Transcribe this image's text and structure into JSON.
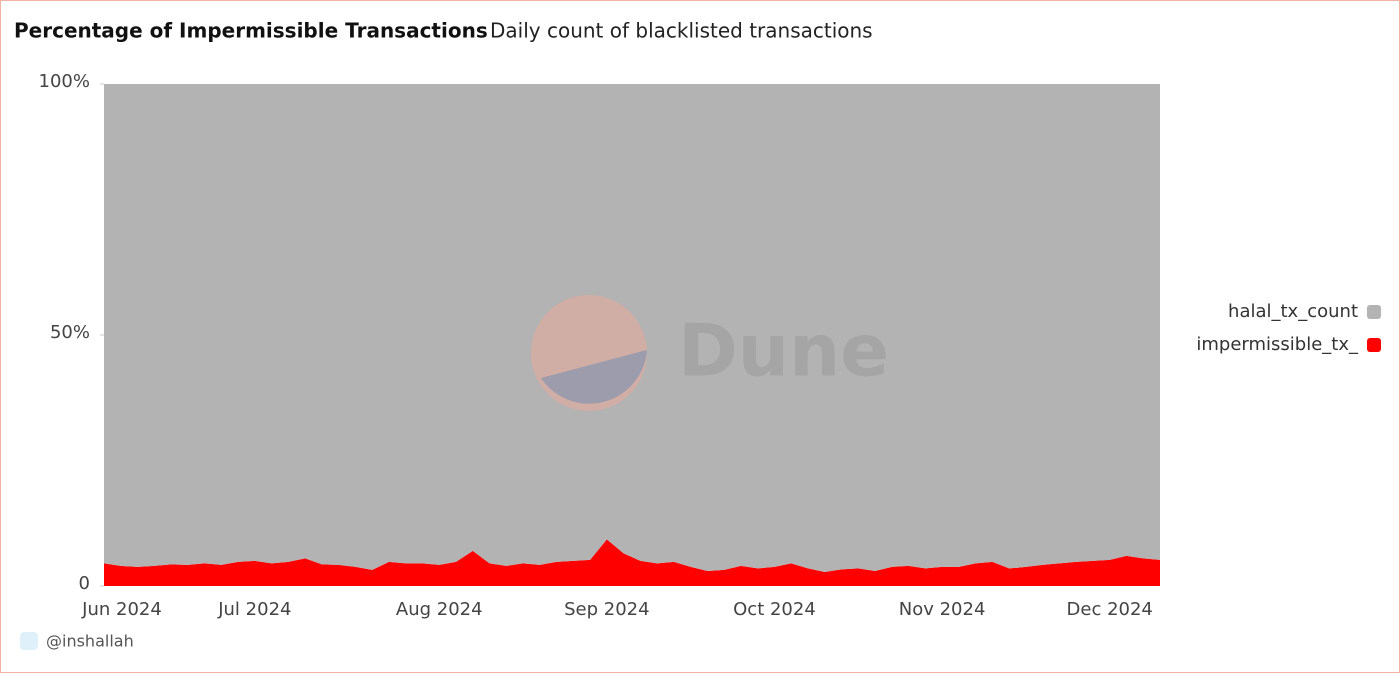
{
  "chart_data": {
    "type": "stacked-area-percent",
    "title": "Percentage of Impermissible Transactions",
    "subtitle": "Daily count of blacklisted transactions",
    "watermark": "Dune",
    "credit": "@inshallah",
    "categories": [
      "Jun 2024",
      null,
      null,
      null,
      null,
      null,
      null,
      null,
      null,
      "Jul 2024",
      null,
      null,
      null,
      null,
      null,
      null,
      null,
      null,
      null,
      null,
      "Aug 2024",
      null,
      null,
      null,
      null,
      null,
      null,
      null,
      null,
      null,
      "Sep 2024",
      null,
      null,
      null,
      null,
      null,
      null,
      null,
      null,
      null,
      "Oct 2024",
      null,
      null,
      null,
      null,
      null,
      null,
      null,
      null,
      null,
      "Nov 2024",
      null,
      null,
      null,
      null,
      null,
      null,
      null,
      null,
      null,
      "Dec 2024",
      null,
      null,
      null
    ],
    "series": [
      {
        "name": "halal_tx_count",
        "color": "#b3b3b3",
        "values": [
          95.5,
          96,
          96.2,
          96,
          95.7,
          95.8,
          95.5,
          95.8,
          95.2,
          95,
          95.5,
          95.2,
          94.5,
          95.7,
          95.8,
          96.2,
          96.8,
          95.2,
          95.5,
          95.5,
          95.8,
          95.2,
          93,
          95.5,
          96,
          95.5,
          95.8,
          95.2,
          95,
          94.8,
          90.7,
          93.5,
          95,
          95.5,
          95.2,
          96.2,
          97,
          96.8,
          96,
          96.5,
          96.2,
          95.5,
          96.5,
          97.2,
          96.7,
          96.5,
          97,
          96.2,
          96,
          96.5,
          96.2,
          96.2,
          95.5,
          95.2,
          96.5,
          96.2,
          95.8,
          95.5,
          95.2,
          95,
          94.8,
          94,
          94.5,
          94.8
        ]
      },
      {
        "name": "impermissible_tx_",
        "color": "#ff0000",
        "values": [
          4.5,
          4,
          3.8,
          4,
          4.3,
          4.2,
          4.5,
          4.2,
          4.8,
          5,
          4.5,
          4.8,
          5.5,
          4.3,
          4.2,
          3.8,
          3.2,
          4.8,
          4.5,
          4.5,
          4.2,
          4.8,
          7,
          4.5,
          4,
          4.5,
          4.2,
          4.8,
          5,
          5.2,
          9.3,
          6.5,
          5,
          4.5,
          4.8,
          3.8,
          3,
          3.2,
          4,
          3.5,
          3.8,
          4.5,
          3.5,
          2.8,
          3.3,
          3.5,
          3,
          3.8,
          4,
          3.5,
          3.8,
          3.8,
          4.5,
          4.8,
          3.5,
          3.8,
          4.2,
          4.5,
          4.8,
          5,
          5.2,
          6,
          5.5,
          5.2
        ]
      }
    ],
    "ylim": [
      0,
      100
    ],
    "yticks": [
      0,
      {
        "value": 50,
        "label": "50%"
      },
      {
        "value": 100,
        "label": "100%"
      }
    ],
    "legend": "right"
  }
}
